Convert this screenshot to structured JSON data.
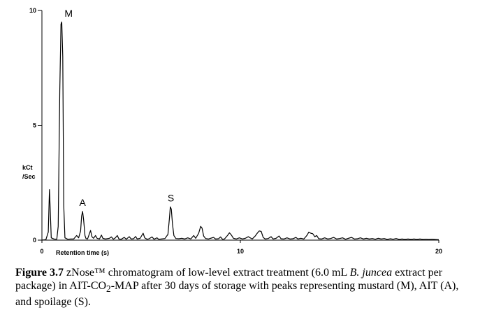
{
  "chart_data": {
    "type": "line",
    "title": "",
    "xlabel": "Retention time (s)",
    "ylabel_line1": "kCt",
    "ylabel_line2": "/Sec",
    "xlim": [
      0,
      20
    ],
    "ylim": [
      0,
      10
    ],
    "x_ticks": [
      0,
      10,
      20
    ],
    "y_ticks": [
      0,
      5,
      10
    ],
    "grid": false,
    "peak_labels": [
      {
        "label": "M",
        "x": 1.0,
        "y": 9.55
      },
      {
        "label": "A",
        "x": 2.05,
        "y": 1.3
      },
      {
        "label": "S",
        "x": 6.5,
        "y": 1.5
      }
    ],
    "series": [
      {
        "values": [
          [
            0.0,
            0.0
          ],
          [
            0.2,
            0.02
          ],
          [
            0.32,
            0.35
          ],
          [
            0.38,
            2.2
          ],
          [
            0.42,
            1.3
          ],
          [
            0.47,
            0.1
          ],
          [
            0.6,
            0.05
          ],
          [
            0.75,
            0.04
          ],
          [
            0.82,
            0.6
          ],
          [
            0.9,
            6.5
          ],
          [
            0.96,
            9.4
          ],
          [
            1.0,
            9.5
          ],
          [
            1.05,
            8.0
          ],
          [
            1.1,
            1.5
          ],
          [
            1.16,
            0.1
          ],
          [
            1.3,
            0.04
          ],
          [
            1.45,
            0.05
          ],
          [
            1.6,
            0.05
          ],
          [
            1.75,
            0.2
          ],
          [
            1.85,
            0.1
          ],
          [
            1.95,
            0.4
          ],
          [
            2.0,
            1.05
          ],
          [
            2.05,
            1.25
          ],
          [
            2.1,
            0.9
          ],
          [
            2.17,
            0.2
          ],
          [
            2.22,
            0.07
          ],
          [
            2.3,
            0.05
          ],
          [
            2.45,
            0.42
          ],
          [
            2.52,
            0.15
          ],
          [
            2.6,
            0.08
          ],
          [
            2.7,
            0.2
          ],
          [
            2.78,
            0.08
          ],
          [
            2.9,
            0.05
          ],
          [
            3.0,
            0.22
          ],
          [
            3.07,
            0.08
          ],
          [
            3.2,
            0.05
          ],
          [
            3.4,
            0.08
          ],
          [
            3.5,
            0.14
          ],
          [
            3.6,
            0.04
          ],
          [
            3.7,
            0.1
          ],
          [
            3.8,
            0.2
          ],
          [
            3.88,
            0.05
          ],
          [
            4.0,
            0.04
          ],
          [
            4.15,
            0.12
          ],
          [
            4.25,
            0.04
          ],
          [
            4.4,
            0.15
          ],
          [
            4.5,
            0.05
          ],
          [
            4.62,
            0.06
          ],
          [
            4.72,
            0.16
          ],
          [
            4.8,
            0.05
          ],
          [
            4.95,
            0.08
          ],
          [
            5.1,
            0.3
          ],
          [
            5.18,
            0.1
          ],
          [
            5.3,
            0.04
          ],
          [
            5.4,
            0.06
          ],
          [
            5.55,
            0.14
          ],
          [
            5.65,
            0.04
          ],
          [
            5.8,
            0.1
          ],
          [
            5.88,
            0.04
          ],
          [
            6.0,
            0.05
          ],
          [
            6.2,
            0.07
          ],
          [
            6.35,
            0.25
          ],
          [
            6.42,
            0.9
          ],
          [
            6.47,
            1.45
          ],
          [
            6.52,
            1.35
          ],
          [
            6.58,
            0.7
          ],
          [
            6.65,
            0.2
          ],
          [
            6.75,
            0.07
          ],
          [
            6.9,
            0.06
          ],
          [
            7.05,
            0.08
          ],
          [
            7.2,
            0.05
          ],
          [
            7.35,
            0.1
          ],
          [
            7.5,
            0.05
          ],
          [
            7.65,
            0.2
          ],
          [
            7.75,
            0.08
          ],
          [
            7.9,
            0.3
          ],
          [
            8.0,
            0.6
          ],
          [
            8.07,
            0.52
          ],
          [
            8.15,
            0.18
          ],
          [
            8.25,
            0.07
          ],
          [
            8.4,
            0.05
          ],
          [
            8.5,
            0.08
          ],
          [
            8.65,
            0.12
          ],
          [
            8.75,
            0.05
          ],
          [
            8.9,
            0.06
          ],
          [
            9.0,
            0.14
          ],
          [
            9.1,
            0.04
          ],
          [
            9.2,
            0.05
          ],
          [
            9.35,
            0.2
          ],
          [
            9.45,
            0.32
          ],
          [
            9.55,
            0.22
          ],
          [
            9.65,
            0.08
          ],
          [
            9.8,
            0.05
          ],
          [
            9.95,
            0.1
          ],
          [
            10.1,
            0.05
          ],
          [
            10.25,
            0.08
          ],
          [
            10.4,
            0.15
          ],
          [
            10.5,
            0.1
          ],
          [
            10.6,
            0.05
          ],
          [
            10.75,
            0.18
          ],
          [
            10.85,
            0.3
          ],
          [
            10.95,
            0.4
          ],
          [
            11.05,
            0.38
          ],
          [
            11.15,
            0.12
          ],
          [
            11.25,
            0.05
          ],
          [
            11.4,
            0.07
          ],
          [
            11.55,
            0.15
          ],
          [
            11.65,
            0.05
          ],
          [
            11.8,
            0.08
          ],
          [
            11.95,
            0.18
          ],
          [
            12.05,
            0.06
          ],
          [
            12.2,
            0.05
          ],
          [
            12.35,
            0.1
          ],
          [
            12.5,
            0.05
          ],
          [
            12.65,
            0.06
          ],
          [
            12.8,
            0.12
          ],
          [
            12.9,
            0.05
          ],
          [
            13.05,
            0.08
          ],
          [
            13.2,
            0.05
          ],
          [
            13.35,
            0.2
          ],
          [
            13.45,
            0.35
          ],
          [
            13.55,
            0.3
          ],
          [
            13.65,
            0.28
          ],
          [
            13.75,
            0.15
          ],
          [
            13.85,
            0.2
          ],
          [
            13.95,
            0.06
          ],
          [
            14.1,
            0.05
          ],
          [
            14.25,
            0.1
          ],
          [
            14.4,
            0.05
          ],
          [
            14.55,
            0.07
          ],
          [
            14.7,
            0.12
          ],
          [
            14.85,
            0.05
          ],
          [
            15.0,
            0.07
          ],
          [
            15.15,
            0.1
          ],
          [
            15.3,
            0.04
          ],
          [
            15.45,
            0.08
          ],
          [
            15.6,
            0.12
          ],
          [
            15.75,
            0.05
          ],
          [
            15.9,
            0.06
          ],
          [
            16.05,
            0.1
          ],
          [
            16.2,
            0.05
          ],
          [
            16.35,
            0.08
          ],
          [
            16.5,
            0.05
          ],
          [
            16.65,
            0.07
          ],
          [
            16.8,
            0.04
          ],
          [
            16.95,
            0.08
          ],
          [
            17.1,
            0.05
          ],
          [
            17.25,
            0.07
          ],
          [
            17.4,
            0.03
          ],
          [
            17.55,
            0.06
          ],
          [
            17.7,
            0.04
          ],
          [
            17.85,
            0.07
          ],
          [
            18.0,
            0.03
          ],
          [
            18.15,
            0.05
          ],
          [
            18.3,
            0.03
          ],
          [
            18.45,
            0.05
          ],
          [
            18.6,
            0.03
          ],
          [
            18.75,
            0.05
          ],
          [
            18.9,
            0.03
          ],
          [
            19.05,
            0.05
          ],
          [
            19.2,
            0.03
          ],
          [
            19.35,
            0.04
          ],
          [
            19.5,
            0.03
          ],
          [
            19.65,
            0.04
          ],
          [
            19.8,
            0.03
          ],
          [
            20.0,
            0.02
          ]
        ]
      }
    ]
  },
  "caption": {
    "label": "Figure 3.7",
    "part1": " zNose™ chromatogram of low-level extract treatment (6.0 mL ",
    "species": "B. juncea",
    "part2": " extract per package) in AIT-CO",
    "sub": "2",
    "part3": "-MAP after 30 days of storage with peaks representing mustard (M), AIT (A), and spoilage (S)."
  }
}
